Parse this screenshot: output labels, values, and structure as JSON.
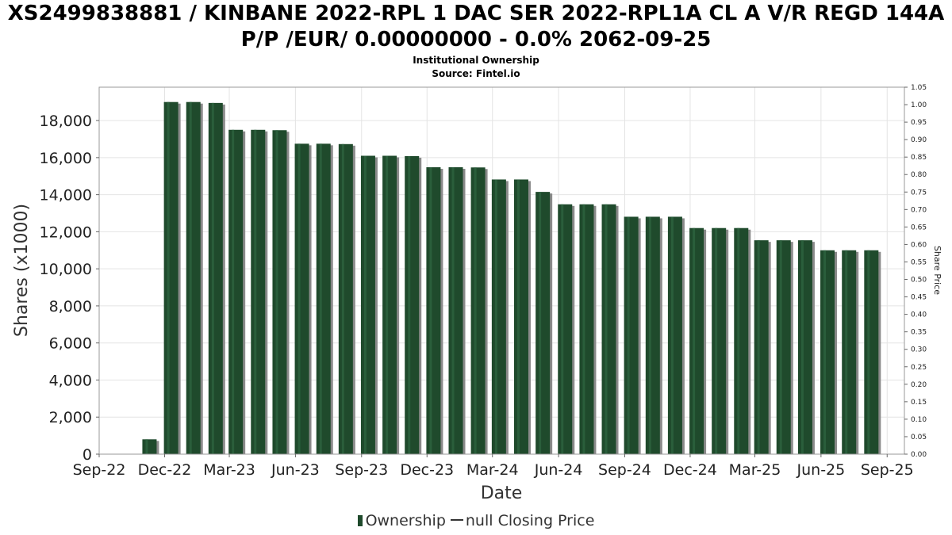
{
  "title_line1": "XS2499838881 / KINBANE 2022-RPL 1 DAC SER 2022-RPL1A CL A V/R REGD 144A",
  "title_line2": "P/P /EUR/ 0.00000000 - 0.0% 2062-09-25",
  "subtitle1": "Institutional Ownership",
  "subtitle2": "Source: Fintel.io",
  "legend": {
    "ownership": "Ownership",
    "closing_price": "null Closing Price"
  },
  "colors": {
    "bar": "#1f4a2c",
    "bar_shadow": "#8a8a8a",
    "grid": "#e4e4e4",
    "frame": "#999999"
  },
  "chart_data": {
    "type": "bar",
    "xlabel": "Date",
    "ylabel": "Shares (x1000)",
    "y2label": "Share Price",
    "x_ticks": [
      "Sep-22",
      "Dec-22",
      "Mar-23",
      "Jun-23",
      "Sep-23",
      "Dec-23",
      "Mar-24",
      "Jun-24",
      "Sep-24",
      "Dec-24",
      "Mar-25",
      "Jun-25",
      "Sep-25"
    ],
    "x_tick_dates": [
      "2022-09-01",
      "2022-12-01",
      "2023-03-01",
      "2023-06-01",
      "2023-09-01",
      "2023-12-01",
      "2024-03-01",
      "2024-06-01",
      "2024-09-01",
      "2024-12-01",
      "2025-03-01",
      "2025-06-01",
      "2025-09-01"
    ],
    "x_range": [
      "2022-09-01",
      "2025-09-25"
    ],
    "ylim": [
      0,
      19800
    ],
    "y_ticks": [
      0,
      2000,
      4000,
      6000,
      8000,
      10000,
      12000,
      14000,
      16000,
      18000
    ],
    "y2lim": [
      0,
      1.05
    ],
    "y2_ticks": [
      "0.00",
      "0.05",
      "0.10",
      "0.15",
      "0.20",
      "0.25",
      "0.30",
      "0.35",
      "0.40",
      "0.45",
      "0.50",
      "0.55",
      "0.60",
      "0.65",
      "0.70",
      "0.75",
      "0.80",
      "0.85",
      "0.90",
      "0.95",
      "1.00",
      "1.05"
    ],
    "grid": true,
    "series": [
      {
        "name": "Ownership",
        "points": [
          {
            "date": "2022-11-10",
            "value": 800
          },
          {
            "date": "2022-12-10",
            "value": 19000
          },
          {
            "date": "2023-01-10",
            "value": 19000
          },
          {
            "date": "2023-02-10",
            "value": 18950
          },
          {
            "date": "2023-03-10",
            "value": 17500
          },
          {
            "date": "2023-04-10",
            "value": 17500
          },
          {
            "date": "2023-05-10",
            "value": 17480
          },
          {
            "date": "2023-06-10",
            "value": 16750
          },
          {
            "date": "2023-07-10",
            "value": 16750
          },
          {
            "date": "2023-08-10",
            "value": 16730
          },
          {
            "date": "2023-09-10",
            "value": 16100
          },
          {
            "date": "2023-10-10",
            "value": 16100
          },
          {
            "date": "2023-11-10",
            "value": 16080
          },
          {
            "date": "2023-12-10",
            "value": 15480
          },
          {
            "date": "2024-01-10",
            "value": 15480
          },
          {
            "date": "2024-02-10",
            "value": 15470
          },
          {
            "date": "2024-03-10",
            "value": 14820
          },
          {
            "date": "2024-04-10",
            "value": 14820
          },
          {
            "date": "2024-05-10",
            "value": 14150
          },
          {
            "date": "2024-06-10",
            "value": 13480
          },
          {
            "date": "2024-07-10",
            "value": 13480
          },
          {
            "date": "2024-08-10",
            "value": 13480
          },
          {
            "date": "2024-09-10",
            "value": 12810
          },
          {
            "date": "2024-10-10",
            "value": 12810
          },
          {
            "date": "2024-11-10",
            "value": 12810
          },
          {
            "date": "2024-12-10",
            "value": 12200
          },
          {
            "date": "2025-01-10",
            "value": 12200
          },
          {
            "date": "2025-02-10",
            "value": 12200
          },
          {
            "date": "2025-03-10",
            "value": 11540
          },
          {
            "date": "2025-04-10",
            "value": 11540
          },
          {
            "date": "2025-05-10",
            "value": 11540
          },
          {
            "date": "2025-06-10",
            "value": 11000
          },
          {
            "date": "2025-07-10",
            "value": 11000
          },
          {
            "date": "2025-08-10",
            "value": 11000
          }
        ]
      }
    ]
  }
}
